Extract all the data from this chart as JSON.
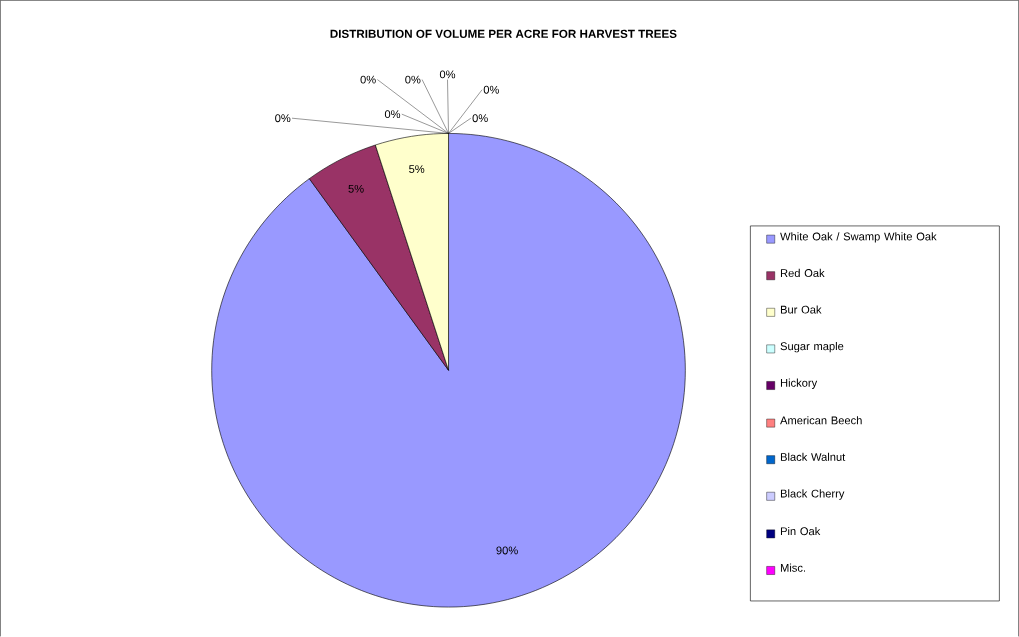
{
  "chart_data": {
    "type": "pie",
    "title": "DISTRIBUTION OF VOLUME PER ACRE FOR HARVEST TREES",
    "categories": [
      "White Oak / Swamp White Oak",
      "Red Oak",
      "Bur Oak",
      "Sugar maple",
      "Hickory",
      "American Beech",
      "Black Walnut",
      "Black Cherry",
      "Pin Oak",
      "Misc."
    ],
    "values": [
      90,
      5,
      5,
      0,
      0,
      0,
      0,
      0,
      0,
      0
    ],
    "value_labels": [
      "90%",
      "5%",
      "5%",
      "0%",
      "0%",
      "0%",
      "0%",
      "0%",
      "0%",
      "0%"
    ],
    "colors": [
      "#9999ff",
      "#993366",
      "#ffffcc",
      "#ccffff",
      "#660066",
      "#ff8080",
      "#0066cc",
      "#ccccff",
      "#000080",
      "#ff00ff"
    ],
    "legend": "right"
  }
}
